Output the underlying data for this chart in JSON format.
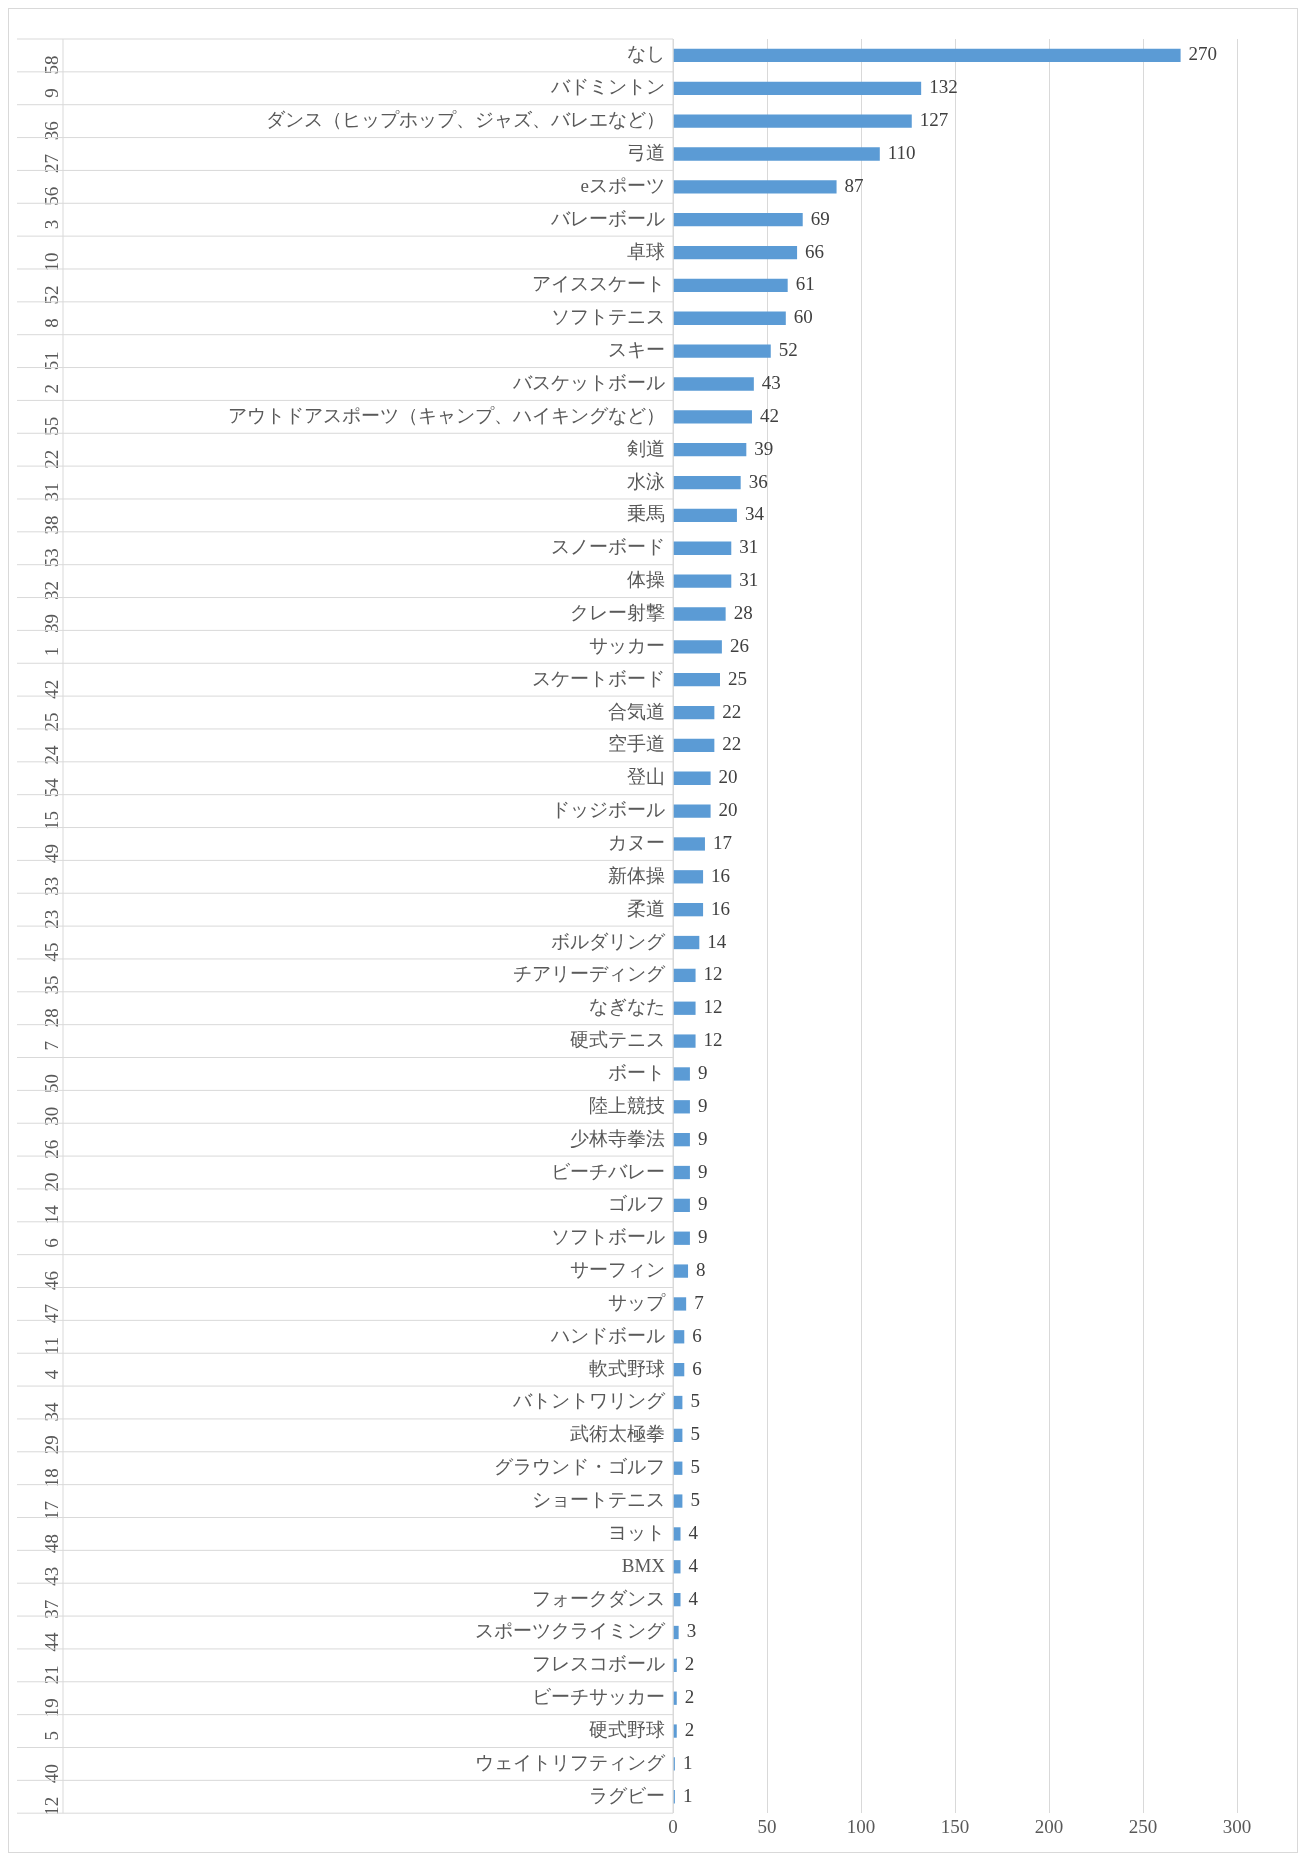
{
  "chart_data": {
    "type": "bar",
    "orientation": "horizontal",
    "color": "#5b9bd5",
    "data_labels": true,
    "grid": "x",
    "legend": false,
    "categories": [
      "なし",
      "バドミントン",
      "ダンス（ヒップホップ、ジャズ、バレエなど）",
      "弓道",
      "eスポーツ",
      "バレーボール",
      "卓球",
      "アイススケート",
      "ソフトテニス",
      "スキー",
      "バスケットボール",
      "アウトドアスポーツ（キャンプ、ハイキングなど）",
      "剣道",
      "水泳",
      "乗馬",
      "スノーボード",
      "体操",
      "クレー射撃",
      "サッカー",
      "スケートボード",
      "合気道",
      "空手道",
      "登山",
      "ドッジボール",
      "カヌー",
      "新体操",
      "柔道",
      "ボルダリング",
      "チアリーディング",
      "なぎなた",
      "硬式テニス",
      "ボート",
      "陸上競技",
      "少林寺拳法",
      "ビーチバレー",
      "ゴルフ",
      "ソフトボール",
      "サーフィン",
      "サップ",
      "ハンドボール",
      "軟式野球",
      "バトントワリング",
      "武術太極拳",
      "グラウンド・ゴルフ",
      "ショートテニス",
      "ヨット",
      "BMX",
      "フォークダンス",
      "スポーツクライミング",
      "フレスコボール",
      "ビーチサッカー",
      "硬式野球",
      "ウェイトリフティング",
      "ラグビー"
    ],
    "y2_categories": [
      "58",
      "9",
      "36",
      "27",
      "56",
      "3",
      "10",
      "52",
      "8",
      "51",
      "2",
      "55",
      "22",
      "31",
      "38",
      "53",
      "32",
      "39",
      "1",
      "42",
      "25",
      "24",
      "54",
      "15",
      "49",
      "33",
      "23",
      "45",
      "35",
      "28",
      "7",
      "50",
      "30",
      "26",
      "20",
      "14",
      "6",
      "46",
      "47",
      "11",
      "4",
      "34",
      "29",
      "18",
      "17",
      "48",
      "43",
      "37",
      "44",
      "21",
      "19",
      "5",
      "40",
      "12"
    ],
    "values": [
      270,
      132,
      127,
      110,
      87,
      69,
      66,
      61,
      60,
      52,
      43,
      42,
      39,
      36,
      34,
      31,
      31,
      28,
      26,
      25,
      22,
      22,
      20,
      20,
      17,
      16,
      16,
      14,
      12,
      12,
      12,
      9,
      9,
      9,
      9,
      9,
      9,
      8,
      7,
      6,
      6,
      5,
      5,
      5,
      5,
      4,
      4,
      4,
      3,
      2,
      2,
      2,
      1,
      1
    ],
    "xlim": [
      0,
      300
    ],
    "xticks": [
      0,
      50,
      100,
      150,
      200,
      250,
      300
    ]
  }
}
